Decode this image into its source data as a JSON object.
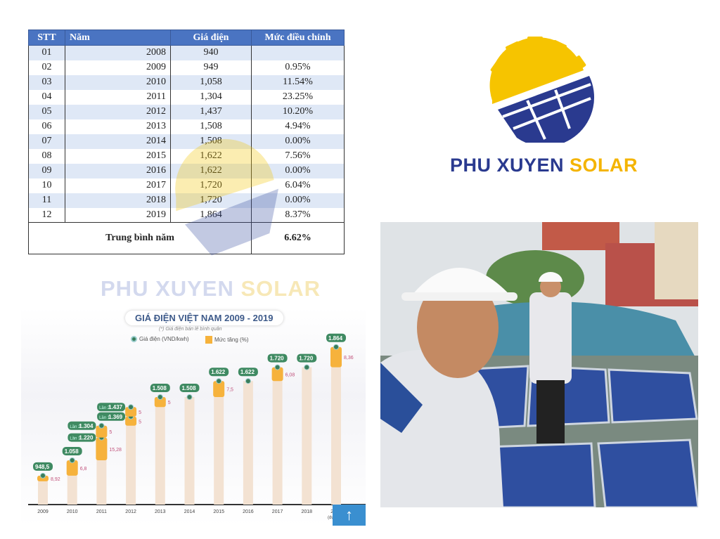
{
  "table": {
    "headers": [
      "STT",
      "Năm",
      "Giá điện",
      "Mức điều chỉnh"
    ],
    "rows": [
      [
        "01",
        "2008",
        "940",
        ""
      ],
      [
        "02",
        "2009",
        "949",
        "0.95%"
      ],
      [
        "03",
        "2010",
        "1,058",
        "11.54%"
      ],
      [
        "04",
        "2011",
        "1,304",
        "23.25%"
      ],
      [
        "05",
        "2012",
        "1,437",
        "10.20%"
      ],
      [
        "06",
        "2013",
        "1,508",
        "4.94%"
      ],
      [
        "07",
        "2014",
        "1,508",
        "0.00%"
      ],
      [
        "08",
        "2015",
        "1,622",
        "7.56%"
      ],
      [
        "09",
        "2016",
        "1,622",
        "0.00%"
      ],
      [
        "10",
        "2017",
        "1,720",
        "6.04%"
      ],
      [
        "11",
        "2018",
        "1,720",
        "0.00%"
      ],
      [
        "12",
        "2019",
        "1,864",
        "8.37%"
      ]
    ],
    "average_label": "Trung bình năm",
    "average_value": "6.62%"
  },
  "brand": {
    "name_part1": "PHU XUYEN",
    "name_part2": "SOLAR",
    "colors": {
      "blue": "#2a3a8f",
      "yellow": "#f4b400"
    }
  },
  "watermark": {
    "part1": "PHU XUYEN",
    "part2": "SOLAR"
  },
  "chart_data": {
    "type": "bar",
    "title": "GIÁ ĐIỆN VIỆT NAM 2009 - 2019",
    "subtitle": "(*) Giá điện bán lẻ bình quân",
    "legend": [
      "Giá điện (VND/kwh)",
      "Mức tăng (%)"
    ],
    "legend_placement": "top",
    "categories": [
      "2009",
      "2010",
      "2011",
      "2012",
      "2013",
      "2014",
      "2015",
      "2016",
      "2017",
      "2018",
      "2019"
    ],
    "x_note_last": "(dự kiến)",
    "prices": [
      [
        948.5
      ],
      [
        1058
      ],
      [
        1220,
        1304
      ],
      [
        1369,
        1437
      ],
      [
        1508
      ],
      [
        1508
      ],
      [
        1622
      ],
      [
        1622
      ],
      [
        1720
      ],
      [
        1720
      ],
      [
        1864
      ]
    ],
    "price_labels": [
      [
        "948,5"
      ],
      [
        "1.058"
      ],
      [
        "1.220",
        "1.304"
      ],
      [
        "1.369",
        "1.437"
      ],
      [
        "1.508"
      ],
      [
        "1.508"
      ],
      [
        "1.622"
      ],
      [
        "1.622"
      ],
      [
        "1.720"
      ],
      [
        "1.720"
      ],
      [
        "1.864"
      ]
    ],
    "round_labels": [
      "Lần 1",
      "Lần 2"
    ],
    "increase_pct": [
      [
        "8,92"
      ],
      [
        "6,8"
      ],
      [
        "15,28",
        "5"
      ],
      [
        "5",
        "5"
      ],
      [
        "5"
      ],
      [],
      [
        "7,5"
      ],
      [],
      [
        "6,08"
      ],
      [],
      [
        "8,36"
      ]
    ],
    "colors": {
      "bar": "#f3e2d2",
      "increase": "#f6b23c",
      "price": "#3a7d5a",
      "pct_text": "#c0507a"
    }
  },
  "scroll_top": {
    "icon": "arrow-up-icon",
    "label": "↑"
  }
}
